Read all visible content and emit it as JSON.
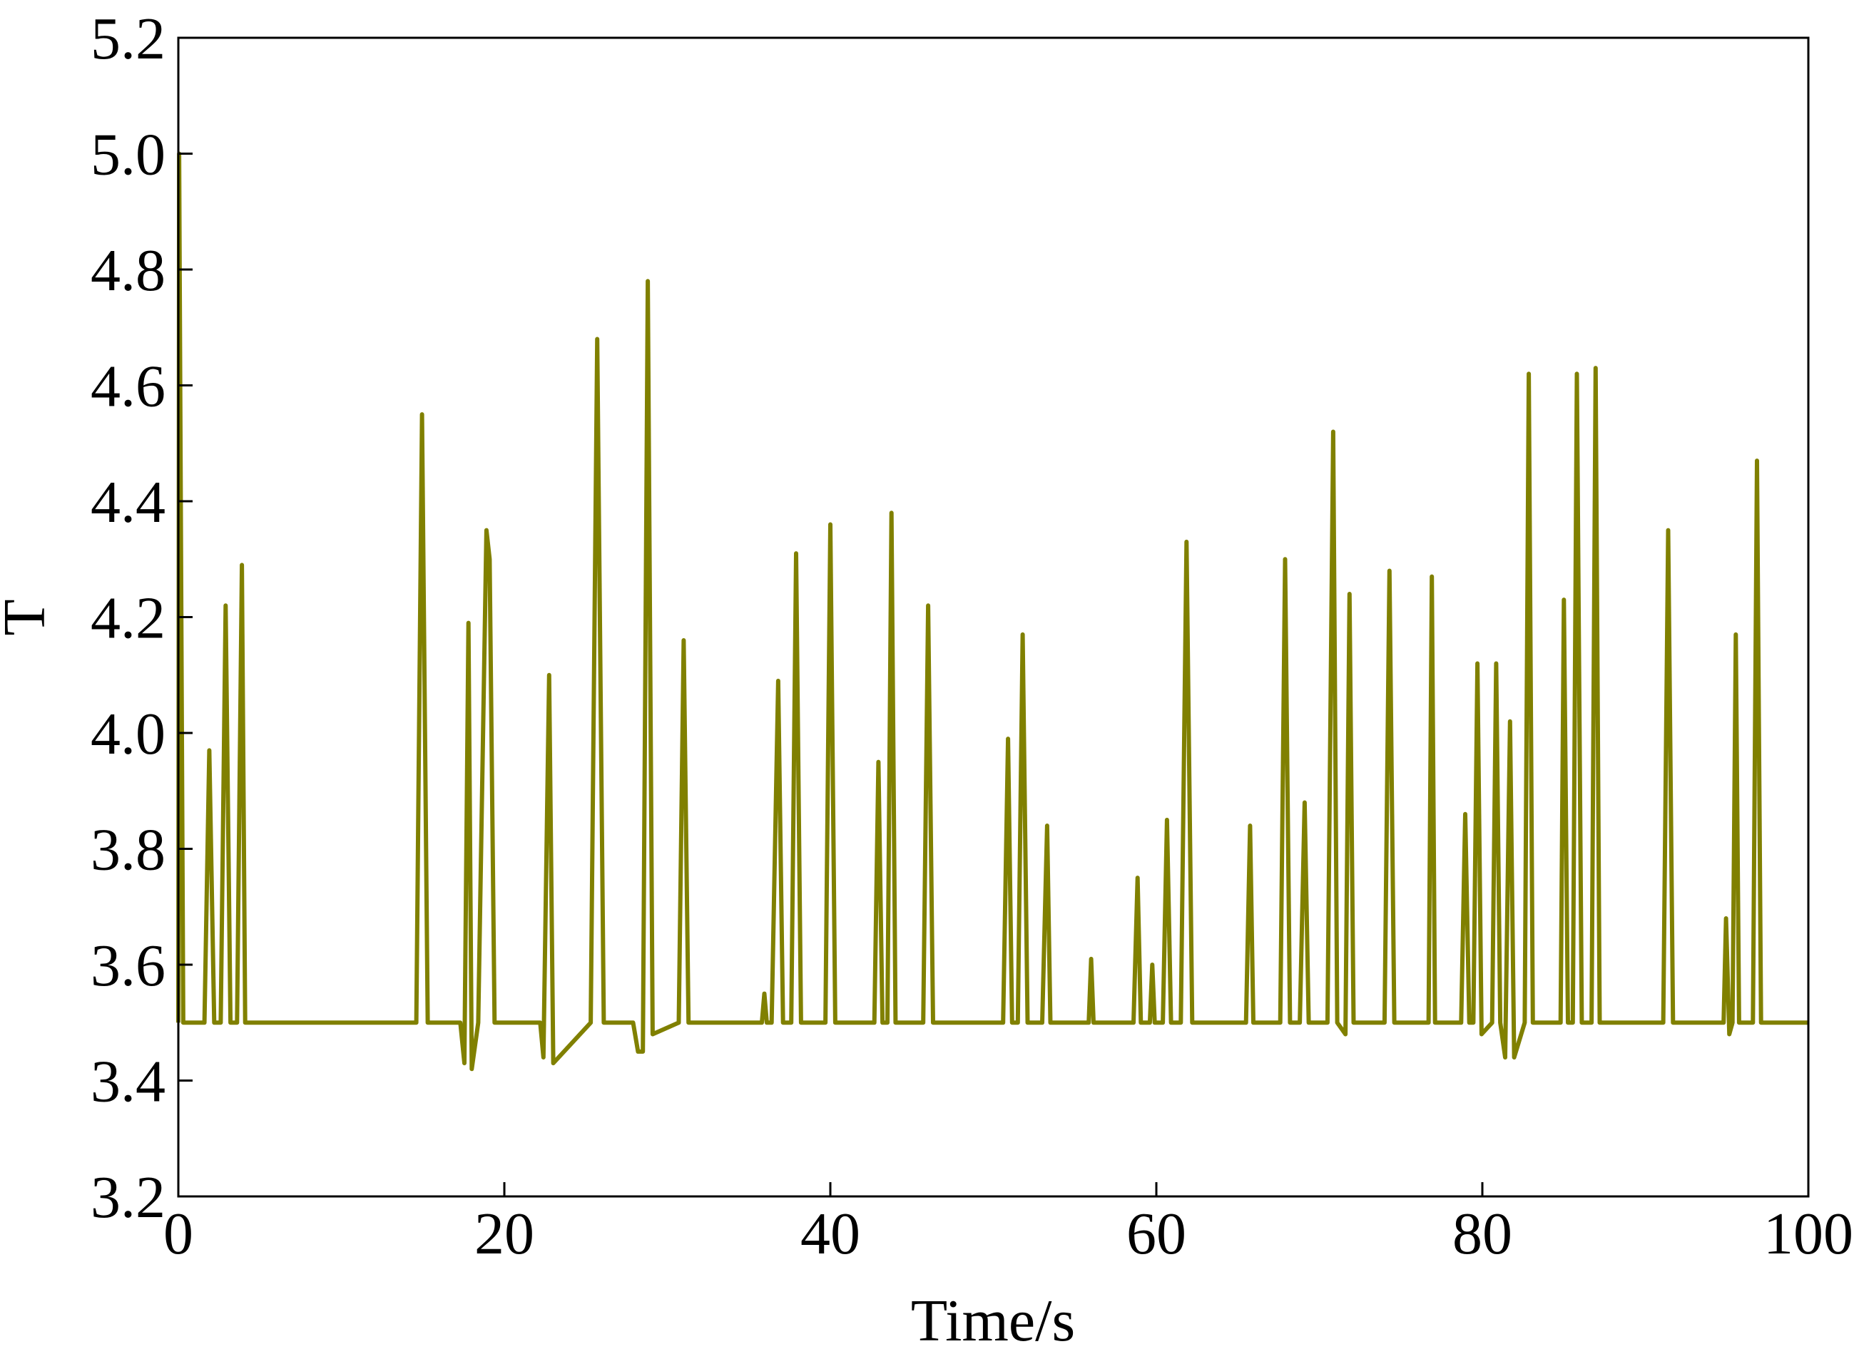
{
  "chart_data": {
    "type": "line",
    "xlabel": "Time/s",
    "ylabel": "T",
    "xlim": [
      0,
      100
    ],
    "ylim": [
      3.2,
      5.2
    ],
    "xticks": [
      0,
      20,
      40,
      60,
      80,
      100
    ],
    "xtick_labels": [
      "0",
      "20",
      "40",
      "60",
      "80",
      "100"
    ],
    "yticks": [
      3.2,
      3.4,
      3.6,
      3.8,
      4.0,
      4.2,
      4.4,
      4.6,
      4.8,
      5.0,
      5.2
    ],
    "ytick_labels": [
      "3.2",
      "3.4",
      "3.6",
      "3.8",
      "4.0",
      "4.2",
      "4.4",
      "4.6",
      "4.8",
      "5.0",
      "5.2"
    ],
    "grid": false,
    "line_color": "#808000",
    "series": [
      {
        "x": [
          0,
          0.05,
          0.3,
          1.6,
          1.9,
          2.2,
          2.6,
          2.9,
          3.2,
          3.6,
          3.9,
          4.1,
          4.4,
          14.6,
          14.95,
          15.3,
          17.3,
          17.55,
          17.8,
          18.0,
          18.4,
          18.9,
          19.1,
          19.4,
          22.2,
          22.4,
          22.75,
          23.0,
          25.3,
          25.7,
          26.1,
          27.9,
          28.2,
          28.5,
          28.8,
          29.1,
          30.7,
          31.0,
          31.3,
          35.8,
          35.95,
          36.1,
          36.4,
          36.8,
          37.1,
          37.6,
          37.9,
          38.2,
          39.7,
          40.0,
          40.3,
          42.7,
          42.95,
          43.2,
          43.5,
          43.75,
          44.0,
          45.7,
          46.0,
          46.3,
          50.6,
          50.9,
          51.15,
          51.5,
          51.8,
          52.1,
          53.0,
          53.3,
          53.5,
          55.85,
          56.0,
          56.15,
          58.6,
          58.85,
          59.05,
          59.6,
          59.75,
          59.9,
          60.4,
          60.65,
          60.9,
          61.5,
          61.85,
          62.2,
          65.5,
          65.75,
          65.95,
          67.6,
          67.9,
          68.2,
          68.8,
          69.1,
          69.35,
          70.5,
          70.85,
          71.1,
          71.6,
          71.85,
          72.1,
          74.0,
          74.3,
          74.6,
          76.7,
          76.9,
          77.1,
          78.7,
          78.95,
          79.2,
          79.45,
          79.7,
          79.95,
          80.6,
          80.85,
          81.1,
          81.4,
          81.7,
          81.95,
          82.6,
          82.85,
          83.1,
          84.8,
          85.0,
          85.25,
          85.55,
          85.8,
          86.1,
          86.7,
          86.95,
          87.2,
          91.1,
          91.4,
          91.7,
          94.8,
          94.95,
          95.15,
          95.35,
          95.55,
          95.75,
          96.6,
          96.85,
          97.1,
          100
        ],
        "values": [
          3.5,
          5.0,
          3.5,
          3.5,
          3.97,
          3.5,
          3.5,
          4.22,
          3.5,
          3.5,
          4.29,
          3.5,
          3.5,
          3.5,
          4.55,
          3.5,
          3.5,
          3.43,
          4.19,
          3.42,
          3.5,
          4.35,
          4.3,
          3.5,
          3.5,
          3.44,
          4.1,
          3.43,
          3.5,
          4.68,
          3.5,
          3.5,
          3.45,
          3.45,
          4.78,
          3.48,
          3.5,
          4.16,
          3.5,
          3.5,
          3.55,
          3.5,
          3.5,
          4.09,
          3.5,
          3.5,
          4.31,
          3.5,
          3.5,
          4.36,
          3.5,
          3.5,
          3.95,
          3.5,
          3.5,
          4.38,
          3.5,
          3.5,
          4.22,
          3.5,
          3.5,
          3.99,
          3.5,
          3.5,
          4.17,
          3.5,
          3.5,
          3.84,
          3.5,
          3.5,
          3.61,
          3.5,
          3.5,
          3.75,
          3.5,
          3.5,
          3.6,
          3.5,
          3.5,
          3.85,
          3.5,
          3.5,
          4.33,
          3.5,
          3.5,
          3.84,
          3.5,
          3.5,
          4.3,
          3.5,
          3.5,
          3.88,
          3.5,
          3.5,
          4.52,
          3.5,
          3.48,
          4.24,
          3.5,
          3.5,
          4.28,
          3.5,
          3.5,
          4.27,
          3.5,
          3.5,
          3.86,
          3.5,
          3.5,
          4.12,
          3.48,
          3.5,
          4.12,
          3.5,
          3.44,
          4.02,
          3.44,
          3.5,
          4.62,
          3.5,
          3.5,
          4.23,
          3.5,
          3.5,
          4.62,
          3.5,
          3.5,
          4.63,
          3.5,
          3.5,
          4.35,
          3.5,
          3.5,
          3.68,
          3.48,
          3.5,
          4.17,
          3.5,
          3.5,
          4.47,
          3.5,
          3.5
        ]
      }
    ]
  }
}
